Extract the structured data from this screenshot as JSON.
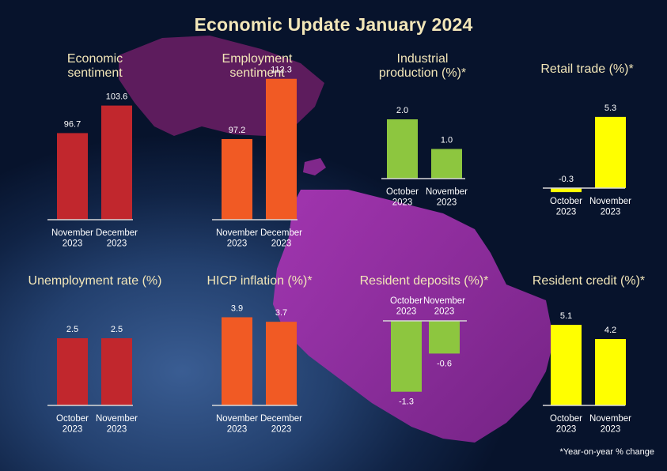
{
  "title": "Economic Update January 2024",
  "footnote": "*Year-on-year % change",
  "colors": {
    "red": "#c1272d",
    "orange": "#f15a24",
    "green": "#8dc63f",
    "yellow": "#ffff00",
    "title": "#f2e6b8",
    "island": "#8b2a9a"
  },
  "chart_data": [
    {
      "type": "bar",
      "title": "Economic\nsentiment",
      "categories": [
        [
          "November",
          "2023"
        ],
        [
          "December",
          "2023"
        ]
      ],
      "values": [
        96.7,
        103.6
      ],
      "labels": [
        "96.7",
        "103.6"
      ],
      "color": "#c1272d"
    },
    {
      "type": "bar",
      "title": "Employment\nsentiment",
      "categories": [
        [
          "November",
          "2023"
        ],
        [
          "December",
          "2023"
        ]
      ],
      "values": [
        97.2,
        112.3
      ],
      "labels": [
        "97.2",
        "112.3"
      ],
      "color": "#f15a24"
    },
    {
      "type": "bar",
      "title": "Industrial\nproduction (%)*",
      "categories": [
        [
          "October",
          "2023"
        ],
        [
          "November",
          "2023"
        ]
      ],
      "values": [
        2.0,
        1.0
      ],
      "labels": [
        "2.0",
        "1.0"
      ],
      "color": "#8dc63f"
    },
    {
      "type": "bar",
      "title": "Retail trade (%)*",
      "categories": [
        [
          "October",
          "2023"
        ],
        [
          "November",
          "2023"
        ]
      ],
      "values": [
        -0.3,
        5.3
      ],
      "labels": [
        "-0.3",
        "5.3"
      ],
      "color": "#ffff00"
    },
    {
      "type": "bar",
      "title": "Unemployment rate (%)",
      "categories": [
        [
          "October",
          "2023"
        ],
        [
          "November",
          "2023"
        ]
      ],
      "values": [
        2.5,
        2.5
      ],
      "labels": [
        "2.5",
        "2.5"
      ],
      "color": "#c1272d"
    },
    {
      "type": "bar",
      "title": "HICP inflation (%)*",
      "categories": [
        [
          "November",
          "2023"
        ],
        [
          "December",
          "2023"
        ]
      ],
      "values": [
        3.9,
        3.7
      ],
      "labels": [
        "3.9",
        "3.7"
      ],
      "color": "#f15a24"
    },
    {
      "type": "bar",
      "title": "Resident deposits (%)*",
      "categories": [
        [
          "October",
          "2023"
        ],
        [
          "November",
          "2023"
        ]
      ],
      "values": [
        -1.3,
        -0.6
      ],
      "labels": [
        "-1.3",
        "-0.6"
      ],
      "color": "#8dc63f"
    },
    {
      "type": "bar",
      "title": "Resident credit (%)*",
      "categories": [
        [
          "October",
          "2023"
        ],
        [
          "November",
          "2023"
        ]
      ],
      "values": [
        5.1,
        4.2
      ],
      "labels": [
        "5.1",
        "4.2"
      ],
      "color": "#ffff00"
    }
  ]
}
